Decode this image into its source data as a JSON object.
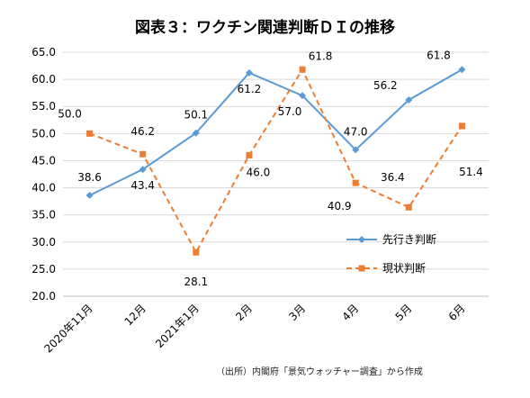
{
  "chart_data": {
    "type": "line",
    "title": "図表３：ワクチン関連判断ＤＩの推移",
    "categories": [
      "2020年11月",
      "12月",
      "2021年1月",
      "2月",
      "3月",
      "4月",
      "5月",
      "6月"
    ],
    "ylim": [
      20.0,
      65.0
    ],
    "yticks": [
      "20.0",
      "25.0",
      "30.0",
      "35.0",
      "40.0",
      "45.0",
      "50.0",
      "55.0",
      "60.0",
      "65.0"
    ],
    "grid": true,
    "legend": "right",
    "series": [
      {
        "name": "先行き判断",
        "color": "#5B9BD5",
        "style": "solid",
        "marker": "diamond",
        "values": [
          38.6,
          43.4,
          50.1,
          61.2,
          57.0,
          47.0,
          56.2,
          61.8
        ],
        "labels": [
          "38.6",
          "43.4",
          "50.1",
          "61.2",
          "57.0",
          "47.0",
          "56.2",
          "61.8"
        ]
      },
      {
        "name": "現状判断",
        "color": "#ED7D31",
        "style": "dashed",
        "marker": "square",
        "values": [
          50.0,
          46.2,
          28.1,
          46.0,
          61.8,
          40.9,
          36.4,
          51.4
        ],
        "labels": [
          "50.0",
          "46.2",
          "28.1",
          "46.0",
          "61.8",
          "40.9",
          "36.4",
          "51.4"
        ]
      }
    ]
  },
  "source": "（出所）内閣府「景気ウォッチャー調査」から作成"
}
